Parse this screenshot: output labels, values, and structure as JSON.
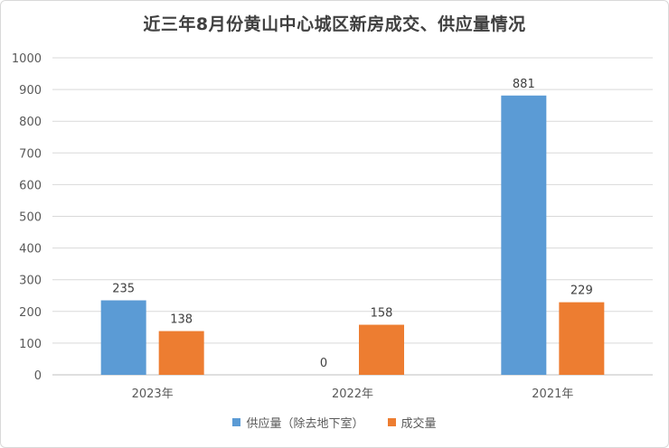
{
  "chart_data": {
    "type": "bar",
    "title": "近三年8月份黄山中心城区新房成交、供应量情况",
    "categories": [
      "2023年",
      "2022年",
      "2021年"
    ],
    "series": [
      {
        "name": "供应量（除去地下室）",
        "values": [
          235,
          0,
          881
        ],
        "color": "#5b9bd5"
      },
      {
        "name": "成交量",
        "values": [
          138,
          158,
          229
        ],
        "color": "#ed7d31"
      }
    ],
    "ylim": [
      0,
      1000
    ],
    "yticks": [
      0,
      100,
      200,
      300,
      400,
      500,
      600,
      700,
      800,
      900,
      1000
    ],
    "grid": true,
    "legend_position": "bottom"
  }
}
